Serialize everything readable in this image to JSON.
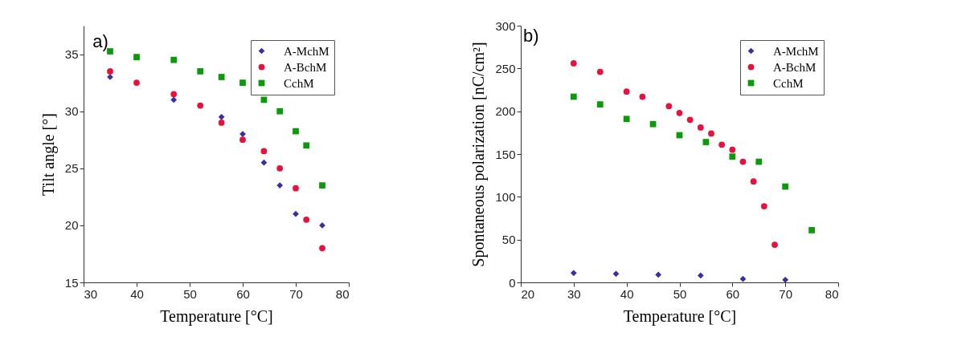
{
  "chart_data": [
    {
      "type": "scatter",
      "title": "a)",
      "xlabel": "Temperature [°C]",
      "ylabel": "Tilt angle [°]",
      "xlim": [
        30,
        80
      ],
      "xticks": [
        30,
        40,
        50,
        60,
        70,
        80
      ],
      "ylim": [
        15,
        37.5
      ],
      "yticks": [
        15,
        20,
        25,
        30,
        35
      ],
      "grid": false,
      "legend": "top right",
      "series": [
        {
          "name": "A-MchM",
          "color": "#3a2fa0",
          "marker": "diamond",
          "x": [
            35,
            47,
            56,
            60,
            64,
            67,
            70,
            75
          ],
          "values": [
            33,
            31,
            29.5,
            28,
            25.5,
            23.5,
            21,
            20
          ]
        },
        {
          "name": "A-BchM",
          "color": "#e8103c",
          "marker": "circle",
          "x": [
            35,
            40,
            47,
            52,
            56,
            60,
            64,
            67,
            70,
            72,
            75
          ],
          "values": [
            33.5,
            32.5,
            31.5,
            30.5,
            29,
            27.5,
            26.5,
            25,
            23.25,
            20.5,
            18
          ]
        },
        {
          "name": "CchM",
          "color": "#0a9a0a",
          "marker": "square",
          "x": [
            35,
            40,
            47,
            52,
            56,
            60,
            64,
            67,
            70,
            72,
            75
          ],
          "values": [
            35.25,
            34.75,
            34.5,
            33.5,
            33,
            32.5,
            31,
            30,
            28.25,
            27,
            23.5
          ]
        }
      ]
    },
    {
      "type": "scatter",
      "title": "b)",
      "xlabel": "Temperature [°C]",
      "ylabel": "Spontaneous polarization  [nC/cm²]",
      "xlim": [
        20,
        80
      ],
      "xticks": [
        20,
        30,
        40,
        50,
        60,
        70,
        80
      ],
      "ylim": [
        0,
        300
      ],
      "yticks": [
        0,
        50,
        100,
        150,
        200,
        250,
        300
      ],
      "grid": false,
      "legend": "top right",
      "series": [
        {
          "name": "A-MchM",
          "color": "#3a2fa0",
          "marker": "diamond",
          "x": [
            30,
            38,
            46,
            54,
            62,
            70
          ],
          "values": [
            11,
            10,
            9,
            8,
            4,
            3
          ]
        },
        {
          "name": "A-BchM",
          "color": "#e8103c",
          "marker": "circle",
          "x": [
            30,
            35,
            40,
            43,
            48,
            50,
            52,
            54,
            56,
            58,
            60,
            62,
            64,
            66,
            68
          ],
          "values": [
            256,
            246,
            223,
            217,
            206,
            198,
            190,
            181,
            174,
            161,
            155,
            141,
            118,
            89,
            44
          ]
        },
        {
          "name": "CchM",
          "color": "#0a9a0a",
          "marker": "square",
          "x": [
            30,
            35,
            40,
            45,
            50,
            55,
            60,
            65,
            70,
            75
          ],
          "values": [
            217,
            208,
            191,
            185,
            172,
            164,
            147,
            141,
            112,
            61
          ]
        }
      ]
    }
  ]
}
